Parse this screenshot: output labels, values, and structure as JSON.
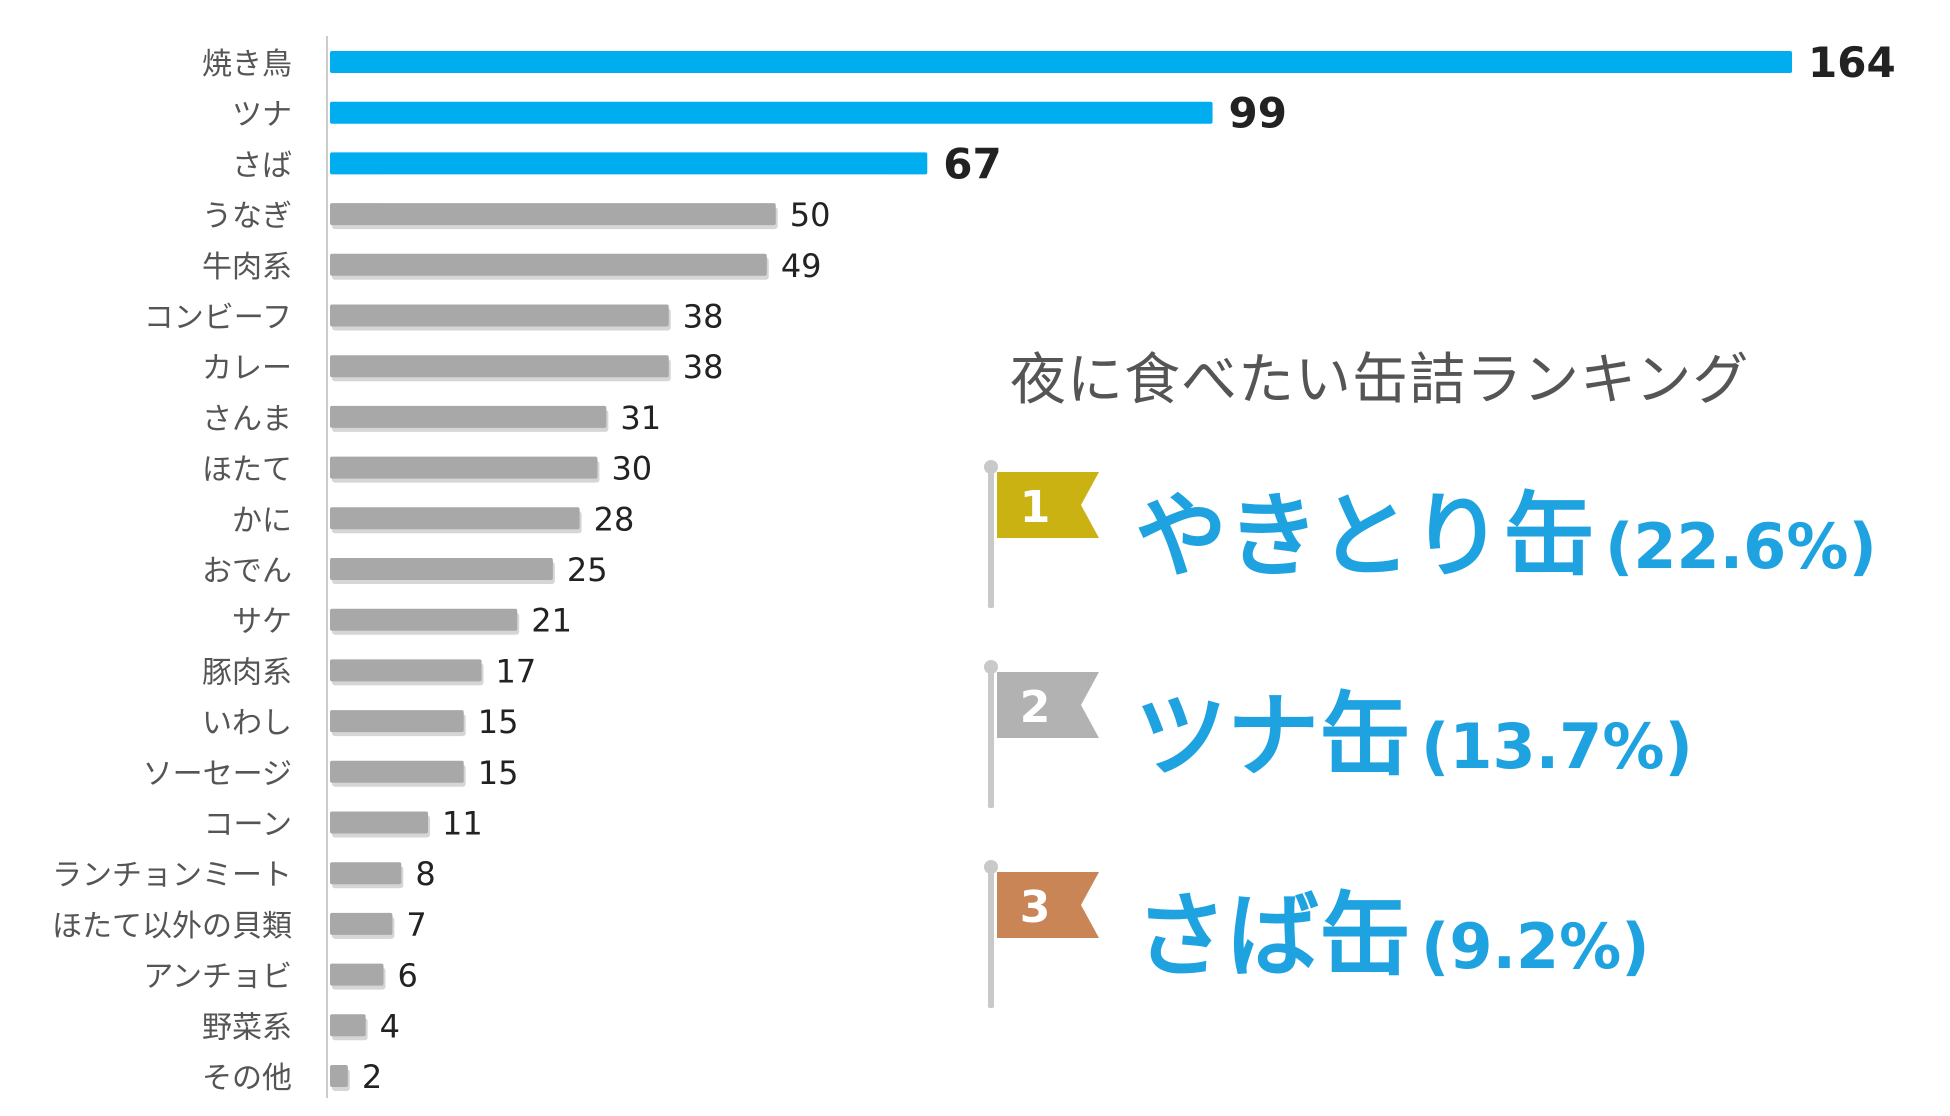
{
  "chart_data": {
    "type": "bar",
    "orientation": "horizontal",
    "categories": [
      "焼き鳥",
      "ツナ",
      "さば",
      "うなぎ",
      "牛肉系",
      "コンビーフ",
      "カレー",
      "さんま",
      "ほたて",
      "かに",
      "おでん",
      "サケ",
      "豚肉系",
      "いわし",
      "ソーセージ",
      "コーン",
      "ランチョンミート",
      "ほたて以外の貝類",
      "アンチョビ",
      "野菜系",
      "その他"
    ],
    "values": [
      164,
      99,
      67,
      50,
      49,
      38,
      38,
      31,
      30,
      28,
      25,
      21,
      17,
      15,
      15,
      11,
      8,
      7,
      6,
      4,
      2
    ],
    "highlight_count": 3,
    "xlim": [
      0,
      164
    ],
    "grid": false,
    "legend": "none"
  },
  "colors": {
    "highlight_bar": "#00aeef",
    "normal_bar": "#a8a8a8",
    "bar_shadow": "#d6d6d6",
    "axis_line": "#cccccc",
    "category_text": "#555555",
    "value_text": "#222222",
    "rank_text": "#1fa2e0",
    "pole": "#c9c9c9"
  },
  "ranking": {
    "title": "夜に食べたい缶詰ランキング",
    "items": [
      {
        "rank": "1",
        "name": "やきとり缶",
        "percent": "(22.6%)",
        "flag_color": "#c9b212",
        "name_size": 92
      },
      {
        "rank": "2",
        "name": "ツナ缶",
        "percent": "(13.7%)",
        "flag_color": "#b2b2b2",
        "name_size": 92
      },
      {
        "rank": "3",
        "name": "さば缶",
        "percent": "(9.2%)",
        "flag_color": "#c98556",
        "name_size": 92
      }
    ]
  }
}
